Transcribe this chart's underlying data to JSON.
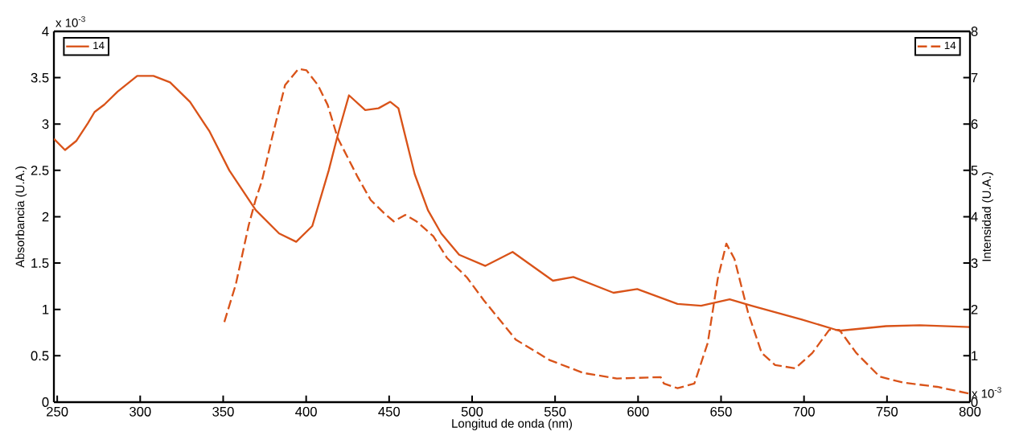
{
  "chart_data": {
    "type": "line",
    "xlabel": "Longitud de onda (nm)",
    "ylabel": "Absorbancia (U.A.)",
    "y2label": "Intensidad (U.A.)",
    "annotations": [
      "x 10$^{-3}$",
      "x 10$^{-3}$"
    ],
    "xlim": [
      248,
      800
    ],
    "xticks": [
      250,
      300,
      350,
      400,
      450,
      500,
      550,
      600,
      650,
      700,
      750,
      800
    ],
    "ylim": [
      0,
      4
    ],
    "yticks": [
      0,
      0.5,
      1,
      1.5,
      2,
      2.5,
      3,
      3.5,
      4
    ],
    "y2lim": [
      0,
      8
    ],
    "y2ticks": [
      0,
      1,
      2,
      3,
      4,
      5,
      6,
      7,
      8
    ],
    "grid": false,
    "legend": "top left",
    "series": [
      {
        "name": "14",
        "color": "#d95319",
        "line_style": "solid",
        "x": [
          248,
          254.7,
          261.6,
          268.5,
          272.5,
          278.4,
          286.4,
          298.2,
          308,
          318,
          330,
          341.8,
          353.7,
          369.7,
          383.7,
          394,
          403.7,
          413.6,
          419.6,
          425.8,
          435.6,
          443.6,
          450.7,
          455.6,
          465.4,
          473.4,
          481.4,
          492.2,
          508,
          524.4,
          548.7,
          561,
          585.2,
          599.5,
          623.8,
          638,
          655.2,
          668.4,
          698.8,
          721.2,
          749.4,
          769.8,
          800
        ],
        "values": [
          2.84,
          2.72,
          2.82,
          3.01,
          3.13,
          3.21,
          3.35,
          3.52,
          3.52,
          3.45,
          3.24,
          2.92,
          2.5,
          2.07,
          1.82,
          1.73,
          1.9,
          2.5,
          2.92,
          3.31,
          3.15,
          3.17,
          3.24,
          3.17,
          2.46,
          2.07,
          1.82,
          1.59,
          1.47,
          1.62,
          1.31,
          1.35,
          1.18,
          1.22,
          1.06,
          1.04,
          1.11,
          1.04,
          0.89,
          0.77,
          0.82,
          0.83,
          0.81
        ]
      },
      {
        "name": "14",
        "color": "#d95319",
        "line_style": "dashed",
        "axis": "y2",
        "x": [
          350.7,
          357.6,
          365.4,
          369.5,
          373.4,
          379.4,
          387.3,
          395.3,
          400.2,
          407.1,
          413,
          419,
          425,
          431,
          438.9,
          446.9,
          452.8,
          459.7,
          466.5,
          476.6,
          484.9,
          496.9,
          507,
          526.3,
          546.6,
          566.9,
          587.2,
          613.6,
          615.6,
          623.8,
          633.9,
          642,
          648,
          653.2,
          658.1,
          666.3,
          674.5,
          682.6,
          694.8,
          705,
          715.2,
          721.3,
          731.5,
          745.6,
          760,
          780.3,
          800
        ],
        "values": [
          1.73,
          2.54,
          3.82,
          4.36,
          4.78,
          5.7,
          6.84,
          7.19,
          7.16,
          6.84,
          6.41,
          5.7,
          5.28,
          4.86,
          4.36,
          4.08,
          3.9,
          4.04,
          3.9,
          3.58,
          3.11,
          2.69,
          2.2,
          1.35,
          0.91,
          0.63,
          0.51,
          0.54,
          0.4,
          0.3,
          0.4,
          1.28,
          2.66,
          3.42,
          3.09,
          1.93,
          1.06,
          0.8,
          0.73,
          1.06,
          1.56,
          1.56,
          1.06,
          0.55,
          0.42,
          0.33,
          0.18
        ]
      }
    ]
  }
}
